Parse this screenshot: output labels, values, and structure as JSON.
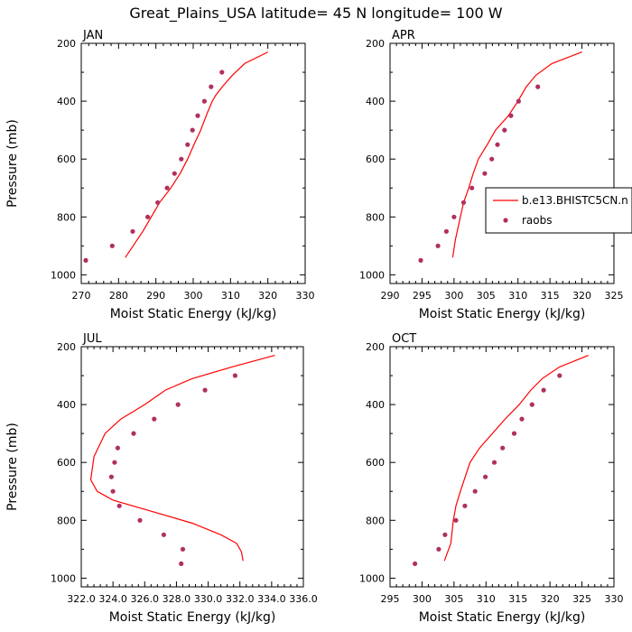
{
  "figure_title": "Great_Plains_USA  latitude= 45 N longitude= 100 W",
  "colors": {
    "model": "#ff0000",
    "obs": "#b03060",
    "axis": "#000000"
  },
  "legend": {
    "model_label": "b.e13.BHISTC5CN.n",
    "obs_label": "raobs"
  },
  "chart_data": [
    {
      "type": "line",
      "panel": "JAN",
      "title": "JAN",
      "xlabel": "Moist Static Energy (kJ/kg)",
      "ylabel": "Pressure (mb)",
      "xlim": [
        270,
        330
      ],
      "ylim": [
        200,
        1030
      ],
      "y_inverted": true,
      "xticks": [
        270,
        280,
        290,
        300,
        310,
        320,
        330
      ],
      "xtick_labels": [
        "270",
        "280",
        "290",
        "300",
        "310",
        "320",
        "330"
      ],
      "yticks": [
        200,
        400,
        600,
        800,
        1000
      ],
      "ytick_labels": [
        "200",
        "400",
        "600",
        "800",
        "1000"
      ],
      "series": [
        {
          "name": "b.e13.BHISTC5CN.n",
          "kind": "line",
          "x": [
            320.0,
            313.8,
            310.5,
            307.8,
            306.0,
            305.1,
            303.8,
            302.0,
            300.2,
            298.5,
            296.5,
            294.0,
            291.0,
            286.5,
            281.8
          ],
          "y": [
            230,
            270,
            310,
            350,
            380,
            400,
            440,
            500,
            550,
            600,
            650,
            700,
            750,
            850,
            940
          ]
        },
        {
          "name": "raobs",
          "kind": "scatter",
          "x": [
            271.2,
            278.3,
            283.8,
            287.8,
            290.5,
            293.0,
            295.0,
            296.8,
            298.5,
            299.8,
            301.2,
            303.0,
            304.8,
            307.7
          ],
          "y": [
            950,
            900,
            850,
            800,
            750,
            700,
            650,
            600,
            550,
            500,
            450,
            400,
            350,
            300
          ]
        }
      ]
    },
    {
      "type": "line",
      "panel": "APR",
      "title": "APR",
      "xlabel": "Moist Static Energy (kJ/kg)",
      "ylabel": "",
      "xlim": [
        290,
        325
      ],
      "ylim": [
        200,
        1030
      ],
      "y_inverted": true,
      "xticks": [
        290,
        295,
        300,
        305,
        310,
        315,
        320,
        325
      ],
      "xtick_labels": [
        "290",
        "295",
        "300",
        "305",
        "310",
        "315",
        "320",
        "325"
      ],
      "yticks": [
        200,
        400,
        600,
        800,
        1000
      ],
      "ytick_labels": [
        "200",
        "400",
        "600",
        "800",
        "1000"
      ],
      "series": [
        {
          "name": "b.e13.BHISTC5CN.n",
          "kind": "line",
          "x": [
            320.0,
            315.3,
            312.8,
            311.3,
            310.0,
            308.5,
            306.5,
            305.2,
            303.8,
            303.0,
            302.3,
            301.5,
            301.0,
            300.2,
            299.8
          ],
          "y": [
            230,
            270,
            310,
            350,
            400,
            450,
            500,
            550,
            600,
            650,
            700,
            750,
            800,
            880,
            940
          ]
        },
        {
          "name": "raobs",
          "kind": "scatter",
          "x": [
            294.8,
            297.5,
            298.8,
            300.0,
            301.5,
            302.8,
            304.8,
            305.9,
            306.8,
            307.9,
            308.9,
            310.1,
            313.1
          ],
          "y": [
            950,
            900,
            850,
            800,
            750,
            700,
            650,
            600,
            550,
            500,
            450,
            400,
            350
          ]
        }
      ]
    },
    {
      "type": "line",
      "panel": "JUL",
      "title": "JUL",
      "xlabel": "Moist Static Energy (kJ/kg)",
      "ylabel": "Pressure (mb)",
      "xlim": [
        322,
        336
      ],
      "ylim": [
        200,
        1030
      ],
      "y_inverted": true,
      "xticks": [
        322,
        324,
        326,
        328,
        330,
        332,
        334,
        336
      ],
      "xtick_labels": [
        "322.0",
        "324.0",
        "326.0",
        "328.0",
        "330.0",
        "332.0",
        "334.0",
        "336.0"
      ],
      "yticks": [
        200,
        400,
        600,
        800,
        1000
      ],
      "ytick_labels": [
        "200",
        "400",
        "600",
        "800",
        "1000"
      ],
      "series": [
        {
          "name": "b.e13.BHISTC5CN.n",
          "kind": "line",
          "x": [
            334.2,
            331.5,
            329.0,
            327.3,
            326.0,
            324.5,
            323.5,
            322.8,
            322.6,
            323.0,
            324.0,
            326.5,
            329.0,
            330.8,
            331.8,
            332.1,
            332.2
          ],
          "y": [
            230,
            270,
            310,
            350,
            400,
            450,
            500,
            580,
            660,
            700,
            730,
            770,
            810,
            850,
            880,
            910,
            940
          ]
        },
        {
          "name": "raobs",
          "kind": "scatter",
          "x": [
            328.3,
            328.4,
            327.2,
            325.7,
            324.4,
            324.0,
            323.9,
            324.1,
            324.3,
            325.3,
            326.6,
            328.1,
            329.8,
            331.7
          ],
          "y": [
            950,
            900,
            850,
            800,
            750,
            700,
            650,
            600,
            550,
            500,
            450,
            400,
            350,
            300
          ]
        }
      ]
    },
    {
      "type": "line",
      "panel": "OCT",
      "title": "OCT",
      "xlabel": "Moist Static Energy (kJ/kg)",
      "ylabel": "",
      "xlim": [
        295,
        330
      ],
      "ylim": [
        200,
        1030
      ],
      "y_inverted": true,
      "xticks": [
        295,
        300,
        305,
        310,
        315,
        320,
        325,
        330
      ],
      "xtick_labels": [
        "295",
        "300",
        "305",
        "310",
        "315",
        "320",
        "325",
        "330"
      ],
      "yticks": [
        200,
        400,
        600,
        800,
        1000
      ],
      "ytick_labels": [
        "200",
        "400",
        "600",
        "800",
        "1000"
      ],
      "series": [
        {
          "name": "b.e13.BHISTC5CN.n",
          "kind": "line",
          "x": [
            326.0,
            321.5,
            318.8,
            317.0,
            315.2,
            313.0,
            311.0,
            309.0,
            307.5,
            306.0,
            305.3,
            304.9,
            304.5,
            303.5
          ],
          "y": [
            230,
            270,
            310,
            350,
            400,
            450,
            500,
            550,
            600,
            700,
            750,
            800,
            880,
            940
          ]
        },
        {
          "name": "raobs",
          "kind": "scatter",
          "x": [
            298.9,
            302.6,
            303.6,
            305.3,
            306.7,
            308.3,
            309.9,
            311.3,
            312.6,
            314.4,
            315.6,
            317.2,
            319.0,
            321.5
          ],
          "y": [
            950,
            900,
            850,
            800,
            750,
            700,
            650,
            600,
            550,
            500,
            450,
            400,
            350,
            300
          ]
        }
      ]
    }
  ]
}
